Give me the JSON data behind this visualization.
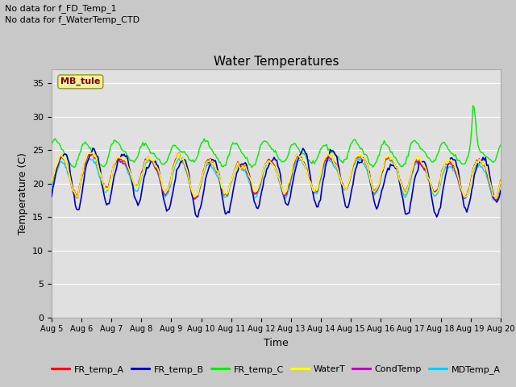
{
  "title": "Water Temperatures",
  "xlabel": "Time",
  "ylabel": "Temperature (C)",
  "note_line1": "No data for f_FD_Temp_1",
  "note_line2": "No data for f_WaterTemp_CTD",
  "annotation": "MB_tule",
  "ylim": [
    0,
    37
  ],
  "yticks": [
    0,
    5,
    10,
    15,
    20,
    25,
    30,
    35
  ],
  "date_start": 5,
  "date_end": 20,
  "fig_bg": "#c8c8c8",
  "plot_bg": "#e0e0e0",
  "grid_color": "#ffffff",
  "legend_items": [
    "FR_temp_A",
    "FR_temp_B",
    "FR_temp_C",
    "WaterT",
    "CondTemp",
    "MDTemp_A"
  ],
  "legend_colors": [
    "#ff0000",
    "#0000bb",
    "#00ee00",
    "#ffff00",
    "#bb00bb",
    "#00ccff"
  ],
  "series_colors": {
    "FR_temp_A": "#ff0000",
    "FR_temp_B": "#0000bb",
    "FR_temp_C": "#00ee00",
    "WaterT": "#ffff00",
    "CondTemp": "#bb00bb",
    "MDTemp_A": "#00ccff"
  }
}
